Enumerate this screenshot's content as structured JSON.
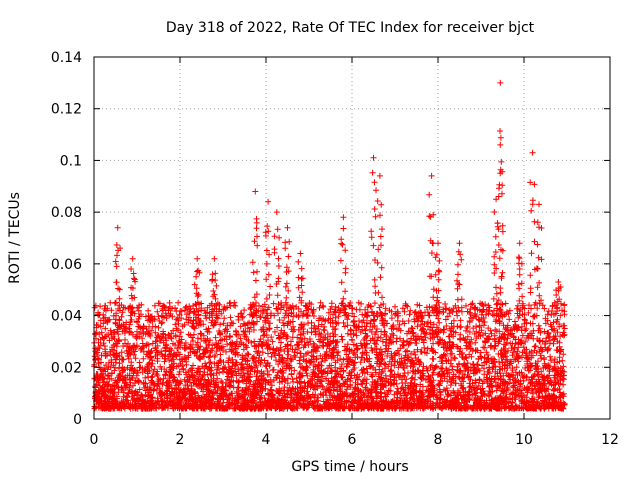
{
  "chart_data": {
    "type": "scatter",
    "title": "Day 318 of 2022, Rate Of TEC Index for receiver bjct",
    "xlabel": "GPS time / hours",
    "ylabel": "ROTI / TECUs",
    "xlim": [
      0,
      12
    ],
    "ylim": [
      0,
      0.14
    ],
    "xticks": [
      "0",
      "2",
      "4",
      "6",
      "8",
      "10",
      "12"
    ],
    "yticks": [
      "0",
      "0.02",
      "0.04",
      "0.06",
      "0.08",
      "0.1",
      "0.12",
      "0.14"
    ],
    "grid": true,
    "marker": "plus",
    "color": "#ff0000",
    "series": [
      {
        "name": "ROTI",
        "x_range": [
          0,
          10.95
        ],
        "baseline_range": [
          0.004,
          0.045
        ],
        "spikes": [
          {
            "x": 0.55,
            "y": 0.074
          },
          {
            "x": 0.9,
            "y": 0.062
          },
          {
            "x": 2.4,
            "y": 0.062
          },
          {
            "x": 2.8,
            "y": 0.062
          },
          {
            "x": 3.75,
            "y": 0.088
          },
          {
            "x": 4.05,
            "y": 0.084
          },
          {
            "x": 4.25,
            "y": 0.08
          },
          {
            "x": 4.5,
            "y": 0.074
          },
          {
            "x": 4.8,
            "y": 0.064
          },
          {
            "x": 5.8,
            "y": 0.078
          },
          {
            "x": 6.5,
            "y": 0.101
          },
          {
            "x": 6.65,
            "y": 0.094
          },
          {
            "x": 7.85,
            "y": 0.094
          },
          {
            "x": 8.0,
            "y": 0.068
          },
          {
            "x": 8.5,
            "y": 0.068
          },
          {
            "x": 9.35,
            "y": 0.085
          },
          {
            "x": 9.45,
            "y": 0.13
          },
          {
            "x": 9.45,
            "y": 0.106
          },
          {
            "x": 9.9,
            "y": 0.068
          },
          {
            "x": 10.2,
            "y": 0.103
          },
          {
            "x": 10.35,
            "y": 0.083
          },
          {
            "x": 10.8,
            "y": 0.053
          }
        ]
      }
    ]
  }
}
